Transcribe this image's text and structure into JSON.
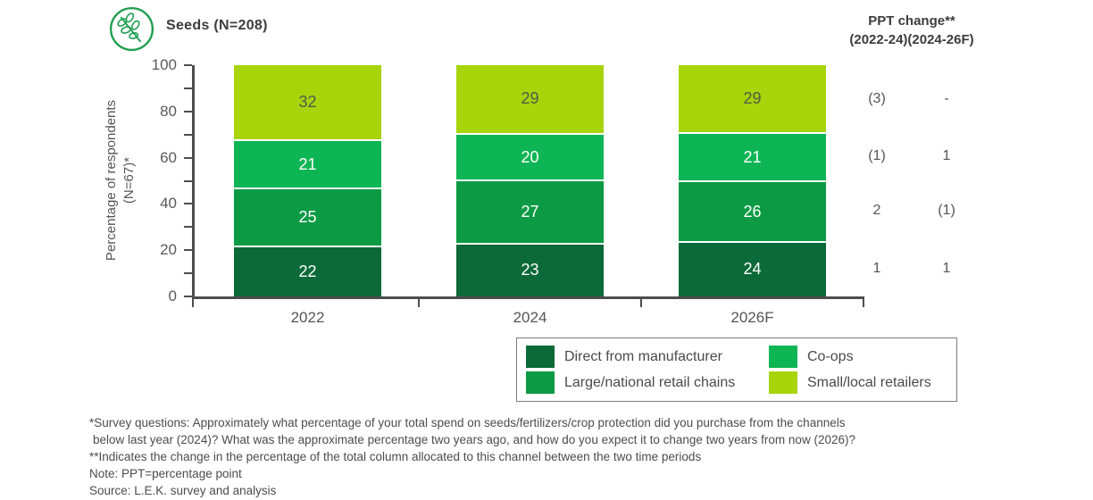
{
  "header": {
    "title": "Seeds (N=208)",
    "icon": "seedling-branch-icon"
  },
  "ppt": {
    "header_line1": "PPT change**",
    "header_line2": "(2022-24)(2024-26F)",
    "rows": [
      {
        "series": "Small/local retailers",
        "change_2022_24": "(3)",
        "change_2024_26F": "-"
      },
      {
        "series": "Co-ops",
        "change_2022_24": "(1)",
        "change_2024_26F": "1"
      },
      {
        "series": "Large/national retail chains",
        "change_2022_24": "2",
        "change_2024_26F": "(1)"
      },
      {
        "series": "Direct from manufacturer",
        "change_2022_24": "1",
        "change_2024_26F": "1"
      }
    ]
  },
  "chart_data": {
    "type": "bar",
    "stacked": true,
    "title": "Seeds (N=208)",
    "categories": [
      "2022",
      "2024",
      "2026F"
    ],
    "series": [
      {
        "name": "Direct from manufacturer",
        "color": "#0b6a38",
        "label_color": "#ffffff",
        "values": [
          22,
          23,
          24
        ]
      },
      {
        "name": "Large/national retail chains",
        "color": "#0c9a45",
        "label_color": "#ffffff",
        "values": [
          25,
          27,
          26
        ]
      },
      {
        "name": "Co-ops",
        "color": "#0db554",
        "label_color": "#ffffff",
        "values": [
          21,
          20,
          21
        ]
      },
      {
        "name": "Small/local retailers",
        "color": "#a7d40b",
        "label_color": "#525a48",
        "values": [
          32,
          29,
          29
        ]
      }
    ],
    "xlabel": "",
    "ylabel": "Percentage of respondents (N=67)*",
    "ylabel_line1": "Percentage of respondents",
    "ylabel_line2": "(N=67)*",
    "ylim": [
      0,
      100
    ],
    "ytick_minor_step": 10,
    "ytick_label_step": 20,
    "grid": false,
    "legend_position": "bottom-right"
  },
  "legend": {
    "items": [
      {
        "label": "Direct from manufacturer",
        "color": "#0b6a38"
      },
      {
        "label": "Co-ops",
        "color": "#0db554"
      },
      {
        "label": "Large/national retail chains",
        "color": "#0c9a45"
      },
      {
        "label": "Small/local retailers",
        "color": "#a7d40b"
      }
    ]
  },
  "footnotes": {
    "line1": "*Survey questions: Approximately what percentage of your total spend on seeds/fertilizers/crop protection did you purchase from the channels",
    "line2": "below last year (2024)? What was the approximate percentage two years ago, and how do you expect it to change two years from now (2026)?",
    "line3": "**Indicates the change in the percentage of the total column allocated to this channel between the two time periods",
    "line4": "Note: PPT=percentage point",
    "line5": "Source: L.E.K. survey and analysis"
  },
  "colors": {
    "icon_stroke": "#1f9e4f",
    "axis": "#4d4d4d",
    "text_gray": "#555555"
  }
}
